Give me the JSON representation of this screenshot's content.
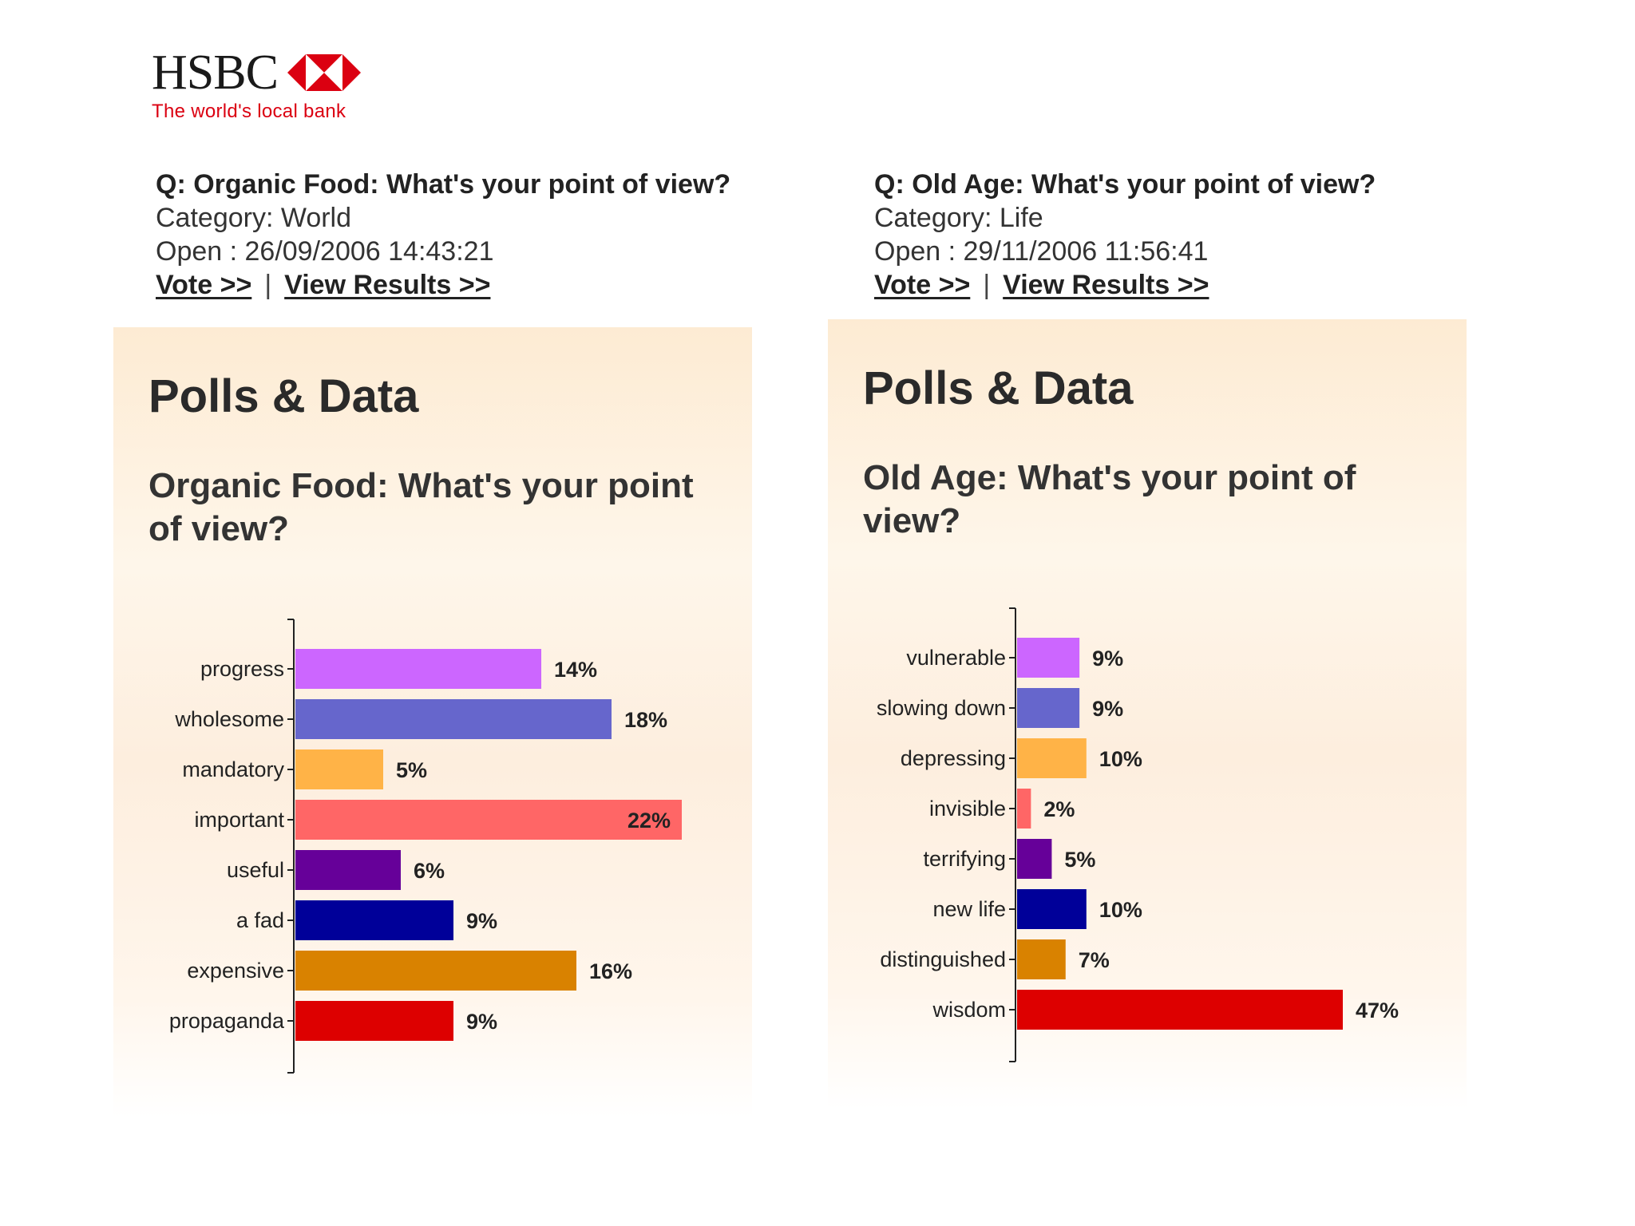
{
  "header": {
    "logo_text": "HSBC",
    "tagline": "The world's local bank",
    "brand_color": "#db0011"
  },
  "polls": [
    {
      "question": "Q: Organic Food: What's your point of view?",
      "category": "Category: World",
      "open": "Open : 26/09/2006 14:43:21",
      "vote_label": "Vote >>",
      "separator": "|",
      "results_label": "View Results >>",
      "panel_title": "Polls & Data",
      "panel_question": "Organic Food: What's your point of view?"
    },
    {
      "question": "Q: Old Age: What's your point of view?",
      "category": "Category: Life",
      "open": "Open : 29/11/2006 11:56:41",
      "vote_label": "Vote >>",
      "separator": "|",
      "results_label": "View Results >>",
      "panel_title": "Polls & Data",
      "panel_question": "Old Age: What's your point of view?"
    }
  ],
  "chart_data": [
    {
      "type": "bar",
      "orientation": "horizontal",
      "categories": [
        "progress",
        "wholesome",
        "mandatory",
        "important",
        "useful",
        "a fad",
        "expensive",
        "propaganda"
      ],
      "values": [
        14,
        18,
        5,
        22,
        6,
        9,
        16,
        9
      ],
      "value_labels": [
        "14%",
        "18%",
        "5%",
        "22%",
        "6%",
        "9%",
        "16%",
        "9%"
      ],
      "colors": [
        "#cc66ff",
        "#6666cc",
        "#ffb347",
        "#ff6666",
        "#660099",
        "#000099",
        "#d98200",
        "#dd0000"
      ],
      "label_inside": [
        false,
        false,
        false,
        true,
        false,
        false,
        false,
        false
      ],
      "xlim": [
        0,
        22
      ]
    },
    {
      "type": "bar",
      "orientation": "horizontal",
      "categories": [
        "vulnerable",
        "slowing down",
        "depressing",
        "invisible",
        "terrifying",
        "new life",
        "distinguished",
        "wisdom"
      ],
      "values": [
        9,
        9,
        10,
        2,
        5,
        10,
        7,
        47
      ],
      "value_labels": [
        "9%",
        "9%",
        "10%",
        "2%",
        "5%",
        "10%",
        "7%",
        "47%"
      ],
      "colors": [
        "#cc66ff",
        "#6666cc",
        "#ffb347",
        "#ff6666",
        "#660099",
        "#000099",
        "#d98200",
        "#dd0000"
      ],
      "label_inside": [
        false,
        false,
        false,
        false,
        false,
        false,
        false,
        false
      ],
      "xlim": [
        0,
        47
      ]
    }
  ]
}
